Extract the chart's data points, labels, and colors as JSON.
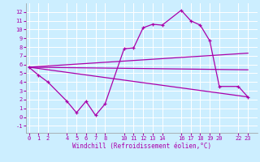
{
  "xlabel": "Windchill (Refroidissement éolien,°C)",
  "bg_color": "#cceeff",
  "grid_color": "#ffffff",
  "line_color": "#aa00aa",
  "xticks": [
    0,
    1,
    2,
    4,
    5,
    6,
    7,
    8,
    10,
    11,
    12,
    13,
    14,
    16,
    17,
    18,
    19,
    20,
    22,
    23
  ],
  "yticks": [
    -1,
    0,
    1,
    2,
    3,
    4,
    5,
    6,
    7,
    8,
    9,
    10,
    11,
    12
  ],
  "xlim": [
    -0.3,
    24.0
  ],
  "ylim": [
    -1.8,
    13.0
  ],
  "jagged_x": [
    0,
    1,
    2,
    4,
    5,
    6,
    7,
    8,
    10,
    11,
    12,
    13,
    14,
    16,
    17,
    18,
    19,
    20,
    22,
    23
  ],
  "jagged_y": [
    5.7,
    4.8,
    4.0,
    1.8,
    0.5,
    1.8,
    0.2,
    1.5,
    7.8,
    7.9,
    10.2,
    10.6,
    10.5,
    12.2,
    11.0,
    10.5,
    8.7,
    3.5,
    3.5,
    2.3
  ],
  "upper_line_x": [
    0,
    23
  ],
  "upper_line_y": [
    5.7,
    7.3
  ],
  "lower_line_x": [
    0,
    23
  ],
  "lower_line_y": [
    5.7,
    2.3
  ],
  "mid_line_x": [
    0,
    23
  ],
  "mid_line_y": [
    5.7,
    5.4
  ]
}
